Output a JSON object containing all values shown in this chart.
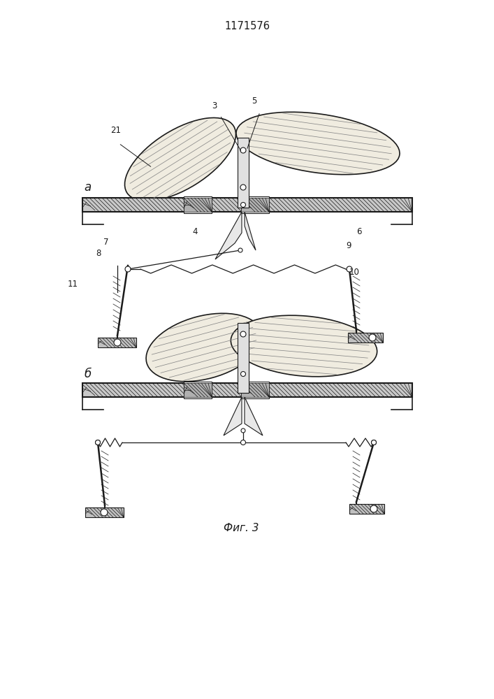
{
  "title": "1171576",
  "fig_width": 7.07,
  "fig_height": 10.0,
  "bg_color": "#ffffff",
  "line_color": "#1a1a1a",
  "label_a": "а",
  "label_b": "б",
  "fig_caption": "Фиг. 3"
}
